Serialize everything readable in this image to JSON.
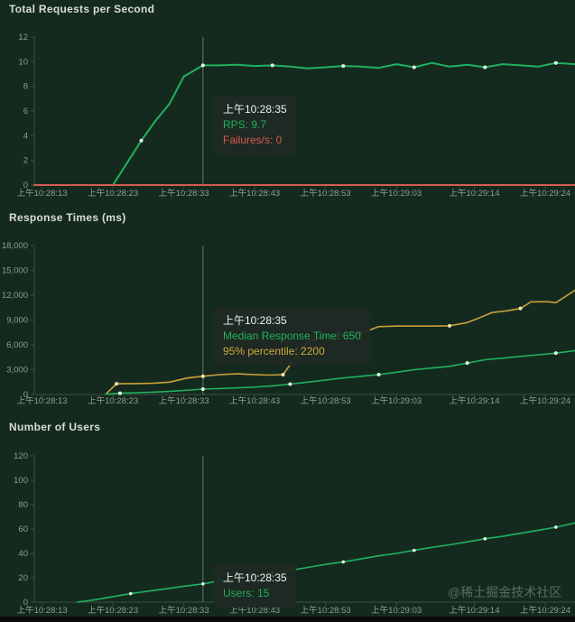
{
  "watermark": "@稀土掘金技术社区",
  "colors": {
    "bg": "#152a1f",
    "title": "#d8dcd8",
    "axis_label": "#8f9c94",
    "axis_line": "#3f4c44",
    "green": "#1fb25f",
    "yellow": "#c9a13b",
    "red": "#d65a52",
    "marker_green": "#e8f6ec",
    "marker_yellow": "#f3e6b5",
    "crosshair": "rgba(170,180,174,0.55)",
    "tooltip_bg": "rgba(30,41,35,0.92)"
  },
  "chart_data": {
    "x_unit": "seconds after 上午10:28:13",
    "xlim": [
      -1.1,
      75.2
    ],
    "crosshair_t": 22.7,
    "crosshair_time": "上午10:28:35",
    "charts": [
      {
        "type": "line",
        "title": "Total Requests per Second",
        "ylim": [
          0,
          12
        ],
        "yticks": [
          {
            "v": 0,
            "label": "0"
          },
          {
            "v": 2,
            "label": "2"
          },
          {
            "v": 4,
            "label": "4"
          },
          {
            "v": 6,
            "label": "6"
          },
          {
            "v": 8,
            "label": "8"
          },
          {
            "v": 10,
            "label": "10"
          },
          {
            "v": 12,
            "label": "12"
          }
        ],
        "xticks": [
          {
            "t": 0,
            "label": "上午10:28:13"
          },
          {
            "t": 10,
            "label": "上午10:28:23"
          },
          {
            "t": 20,
            "label": "上午10:28:33"
          },
          {
            "t": 30,
            "label": "上午10:28:43"
          },
          {
            "t": 40,
            "label": "上午10:28:53"
          },
          {
            "t": 50,
            "label": "上午10:29:03"
          },
          {
            "t": 61,
            "label": "上午10:29:14"
          },
          {
            "t": 71,
            "label": "上午10:29:24"
          }
        ],
        "tooltip": {
          "time": "上午10:28:35",
          "row1": {
            "text": "RPS: 9.7"
          },
          "row2": {
            "text": "Failures/s: 0"
          }
        },
        "series": [
          {
            "name": "RPS",
            "color": "green",
            "width": 2,
            "marker": {
              "every": 4,
              "offset": 2,
              "r": 2,
              "fill": "marker_green"
            },
            "points": [
              [
                10,
                0
              ],
              [
                12,
                1.8
              ],
              [
                14,
                3.6
              ],
              [
                16,
                5.2
              ],
              [
                18,
                6.6
              ],
              [
                20,
                8.8
              ],
              [
                22.7,
                9.7
              ],
              [
                25,
                9.7
              ],
              [
                27.5,
                9.75
              ],
              [
                30,
                9.65
              ],
              [
                32.5,
                9.7
              ],
              [
                35,
                9.6
              ],
              [
                37.5,
                9.45
              ],
              [
                40,
                9.55
              ],
              [
                42.5,
                9.65
              ],
              [
                45,
                9.6
              ],
              [
                47.5,
                9.5
              ],
              [
                50,
                9.8
              ],
              [
                52.5,
                9.55
              ],
              [
                55,
                9.9
              ],
              [
                57.5,
                9.6
              ],
              [
                60,
                9.75
              ],
              [
                62.5,
                9.55
              ],
              [
                65,
                9.8
              ],
              [
                67.5,
                9.7
              ],
              [
                70,
                9.6
              ],
              [
                72.5,
                9.9
              ],
              [
                75.2,
                9.8
              ]
            ]
          },
          {
            "name": "Failures/s",
            "color": "red",
            "width": 2,
            "marker": null,
            "points": [
              [
                -1.1,
                0
              ],
              [
                75.2,
                0
              ]
            ]
          }
        ]
      },
      {
        "type": "line",
        "title": "Response Times (ms)",
        "ylim": [
          0,
          18000
        ],
        "yticks": [
          {
            "v": 0,
            "label": "0"
          },
          {
            "v": 3000,
            "label": "3,000"
          },
          {
            "v": 6000,
            "label": "6,000"
          },
          {
            "v": 9000,
            "label": "9,000"
          },
          {
            "v": 12000,
            "label": "12,000"
          },
          {
            "v": 15000,
            "label": "15,000"
          },
          {
            "v": 18000,
            "label": "18,000"
          }
        ],
        "xticks": [
          {
            "t": 0,
            "label": "上午10:28:13"
          },
          {
            "t": 10,
            "label": "上午10:28:23"
          },
          {
            "t": 20,
            "label": "上午10:28:33"
          },
          {
            "t": 30,
            "label": "上午10:28:43"
          },
          {
            "t": 40,
            "label": "上午10:28:53"
          },
          {
            "t": 50,
            "label": "上午10:29:03"
          },
          {
            "t": 61,
            "label": "上午10:29:14"
          },
          {
            "t": 71,
            "label": "上午10:29:24"
          }
        ],
        "tooltip": {
          "time": "上午10:28:35",
          "row1": {
            "text": "Median Response Time: 650"
          },
          "row2": {
            "text": "95% percentile: 2200"
          }
        },
        "series": [
          {
            "name": "95% percentile",
            "color": "yellow",
            "width": 1.6,
            "marker": {
              "every": 5,
              "offset": 1,
              "r": 2,
              "fill": "marker_yellow"
            },
            "points": [
              [
                9,
                40
              ],
              [
                10.5,
                1300
              ],
              [
                13,
                1320
              ],
              [
                15.5,
                1350
              ],
              [
                18,
                1500
              ],
              [
                20.5,
                2000
              ],
              [
                22.7,
                2200
              ],
              [
                25,
                2400
              ],
              [
                27.5,
                2500
              ],
              [
                30,
                2400
              ],
              [
                32,
                2350
              ],
              [
                34,
                2400
              ],
              [
                35.5,
                4200
              ],
              [
                37.5,
                6400
              ],
              [
                40,
                7000
              ],
              [
                42.5,
                7100
              ],
              [
                45,
                7400
              ],
              [
                47.5,
                8200
              ],
              [
                50,
                8270
              ],
              [
                52.5,
                8270
              ],
              [
                55,
                8270
              ],
              [
                57.5,
                8300
              ],
              [
                60,
                8700
              ],
              [
                61.5,
                9200
              ],
              [
                63.5,
                9900
              ],
              [
                65.5,
                10100
              ],
              [
                67.5,
                10400
              ],
              [
                69,
                11200
              ],
              [
                71.5,
                11200
              ],
              [
                72.5,
                11100
              ],
              [
                75.2,
                12600
              ]
            ]
          },
          {
            "name": "Median Response Time",
            "color": "green",
            "width": 1.6,
            "marker": {
              "every": 5,
              "offset": 1,
              "r": 2,
              "fill": "marker_green"
            },
            "points": [
              [
                9,
                30
              ],
              [
                11,
                150
              ],
              [
                13.5,
                220
              ],
              [
                16,
                300
              ],
              [
                18.5,
                400
              ],
              [
                21,
                550
              ],
              [
                22.7,
                650
              ],
              [
                25,
                720
              ],
              [
                27.5,
                800
              ],
              [
                30,
                900
              ],
              [
                32.5,
                1050
              ],
              [
                35,
                1250
              ],
              [
                37.5,
                1500
              ],
              [
                40,
                1750
              ],
              [
                42.5,
                2000
              ],
              [
                45,
                2200
              ],
              [
                47.5,
                2400
              ],
              [
                50,
                2700
              ],
              [
                52.5,
                3000
              ],
              [
                55,
                3200
              ],
              [
                57.5,
                3400
              ],
              [
                60,
                3800
              ],
              [
                62.5,
                4200
              ],
              [
                65,
                4400
              ],
              [
                67.5,
                4600
              ],
              [
                70,
                4800
              ],
              [
                72.5,
                5000
              ],
              [
                75.2,
                5300
              ]
            ]
          }
        ]
      },
      {
        "type": "line",
        "title": "Number of Users",
        "ylim": [
          0,
          120
        ],
        "yticks": [
          {
            "v": 0,
            "label": "0"
          },
          {
            "v": 20,
            "label": "20"
          },
          {
            "v": 40,
            "label": "40"
          },
          {
            "v": 60,
            "label": "60"
          },
          {
            "v": 80,
            "label": "80"
          },
          {
            "v": 100,
            "label": "100"
          },
          {
            "v": 120,
            "label": "120"
          }
        ],
        "xticks": [
          {
            "t": 0,
            "label": "上午10:28:13"
          },
          {
            "t": 10,
            "label": "上午10:28:23"
          },
          {
            "t": 20,
            "label": "上午10:28:33"
          },
          {
            "t": 30,
            "label": "上午10:28:43"
          },
          {
            "t": 40,
            "label": "上午10:28:53"
          },
          {
            "t": 50,
            "label": "上午10:29:03"
          },
          {
            "t": 61,
            "label": "上午10:29:14"
          },
          {
            "t": 71,
            "label": "上午10:29:24"
          }
        ],
        "tooltip": {
          "time": "上午10:28:35",
          "row1": {
            "text": "Users: 15"
          }
        },
        "series": [
          {
            "name": "Users",
            "color": "green",
            "width": 1.6,
            "marker": {
              "every": 4,
              "offset": 3,
              "r": 1.8,
              "fill": "marker_green"
            },
            "points": [
              [
                5,
                0
              ],
              [
                7.5,
                2
              ],
              [
                10,
                4.5
              ],
              [
                12.5,
                7
              ],
              [
                15,
                9
              ],
              [
                17.5,
                11
              ],
              [
                20,
                13
              ],
              [
                22.7,
                15
              ],
              [
                25,
                17.5
              ],
              [
                27.5,
                19.5
              ],
              [
                30,
                22
              ],
              [
                32.5,
                24
              ],
              [
                35,
                26
              ],
              [
                37.5,
                28.5
              ],
              [
                40,
                31
              ],
              [
                42.5,
                33
              ],
              [
                45,
                35.5
              ],
              [
                47.5,
                38
              ],
              [
                50,
                40
              ],
              [
                52.5,
                42.5
              ],
              [
                55,
                45
              ],
              [
                57.5,
                47
              ],
              [
                60,
                49.5
              ],
              [
                62.5,
                52
              ],
              [
                65,
                54
              ],
              [
                67.5,
                56.5
              ],
              [
                70,
                59
              ],
              [
                72.5,
                61.5
              ],
              [
                75.2,
                65
              ]
            ]
          }
        ]
      }
    ]
  }
}
